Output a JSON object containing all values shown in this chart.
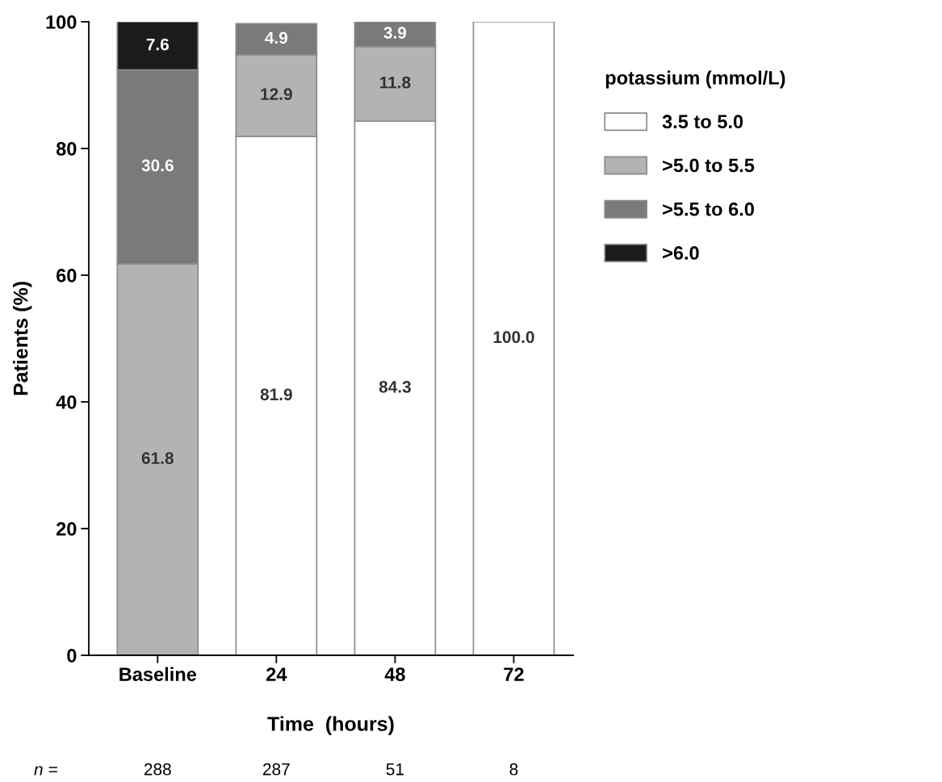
{
  "chart_data": {
    "type": "bar",
    "stacked": true,
    "xlabel": "Time  (hours)",
    "ylabel": "Patients (%)",
    "legend_title": "potassium (mmol/L)",
    "legend": "top right",
    "categories": [
      "Baseline",
      "24",
      "48",
      "72"
    ],
    "series": [
      {
        "name": "3.5 to 5.0",
        "color": "#ffffff",
        "values": [
          null,
          81.9,
          84.3,
          100.0
        ]
      },
      {
        "name": ">5.0 to 5.5",
        "color": "#b3b3b3",
        "values": [
          61.8,
          12.9,
          11.8,
          null
        ]
      },
      {
        "name": ">5.5 to 6.0",
        "color": "#7a7a7a",
        "values": [
          30.6,
          4.9,
          3.9,
          null
        ]
      },
      {
        "name": ">6.0",
        "color": "#1c1c1c",
        "values": [
          7.6,
          null,
          null,
          null
        ]
      }
    ],
    "ylim": [
      0,
      100
    ],
    "yticks": [
      0,
      20,
      40,
      60,
      80,
      100
    ],
    "grid": false,
    "value_labels": [
      [
        null,
        "81.9",
        "84.3",
        "100.0"
      ],
      [
        "61.8",
        "12.9",
        "11.8",
        null
      ],
      [
        "30.6",
        "4.9",
        "3.9",
        null
      ],
      [
        "7.6",
        null,
        null,
        null
      ]
    ],
    "annotations": [
      "n =",
      "288",
      "287",
      "51",
      "8"
    ]
  }
}
